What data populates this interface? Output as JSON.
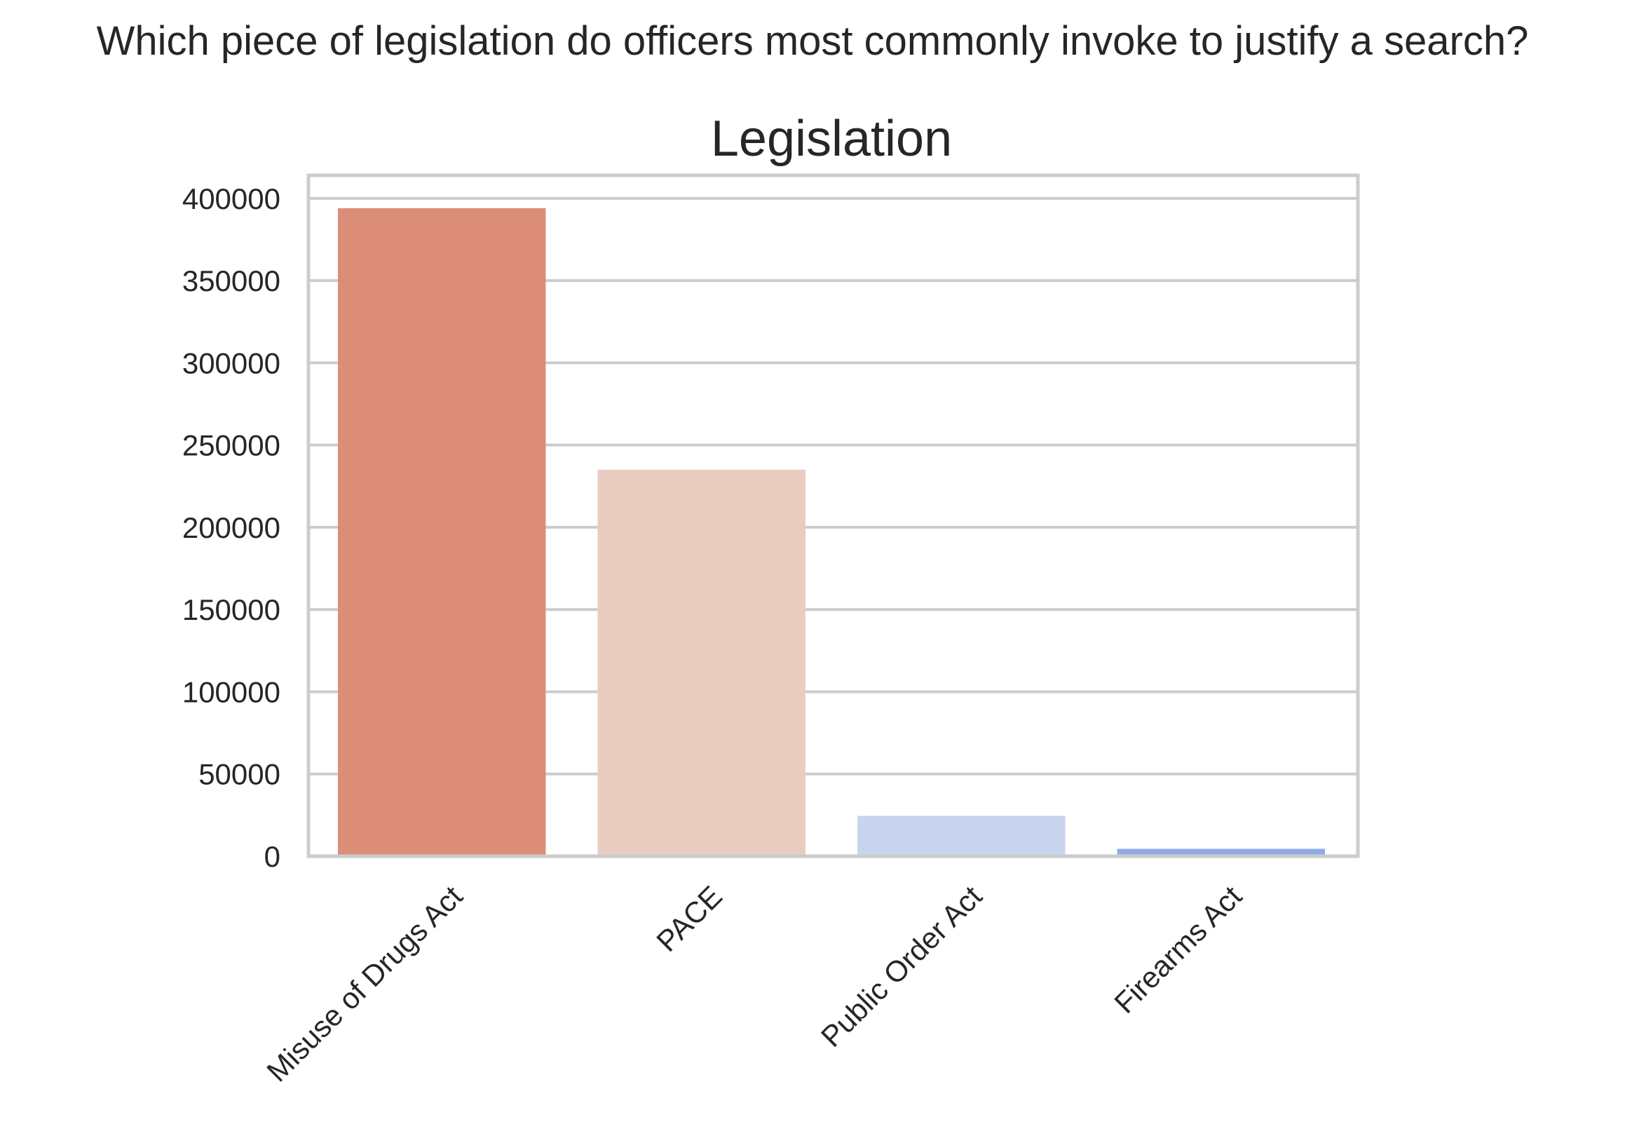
{
  "chart_data": {
    "type": "bar",
    "suptitle": "Which piece of legislation do officers most commonly invoke to justify a search?",
    "title": "Legislation",
    "xlabel": "",
    "ylabel": "",
    "categories": [
      "Misuse of Drugs Act",
      "PACE",
      "Public Order Act",
      "Firearms Act"
    ],
    "values": [
      394000,
      235000,
      24500,
      4500
    ],
    "colors": [
      "#dc8d78",
      "#e9ccbf",
      "#c8d4ee",
      "#8fabe8"
    ],
    "ylim": [
      0,
      400000
    ],
    "yticks": [
      "0",
      "50000",
      "100000",
      "150000",
      "200000",
      "250000",
      "300000",
      "350000",
      "400000"
    ],
    "ytick_values": [
      0,
      50000,
      100000,
      150000,
      200000,
      250000,
      300000,
      350000,
      400000
    ],
    "grid": true,
    "xtick_rotation": "45 degrees"
  }
}
